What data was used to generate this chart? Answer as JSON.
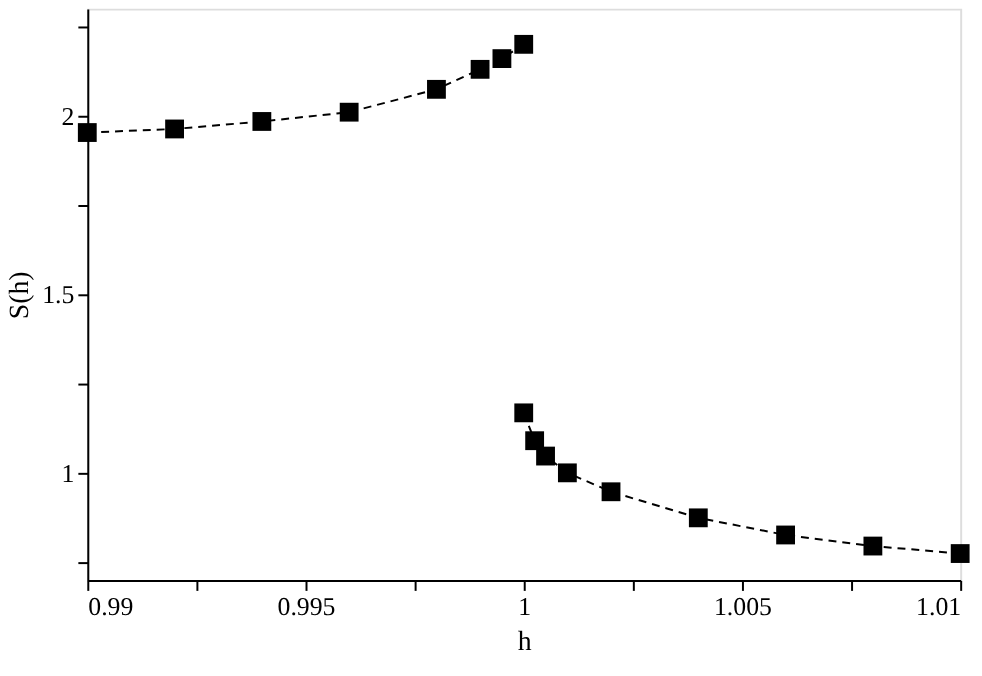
{
  "chart_data": {
    "type": "line",
    "xlabel": "h",
    "ylabel": "S(h)",
    "xlim": [
      0.99,
      1.01
    ],
    "ylim": [
      0.7,
      2.3
    ],
    "xticks": [
      0.99,
      {
        "value": 0.9925,
        "label": null
      },
      0.995,
      {
        "value": 0.9975,
        "label": null
      },
      1,
      {
        "value": 1.0025,
        "label": null
      },
      1.005,
      {
        "value": 1.0075,
        "label": null
      },
      1.01
    ],
    "yticks": [
      {
        "value": 0.75,
        "label": null
      },
      1,
      {
        "value": 1.25,
        "label": null
      },
      1.5,
      {
        "value": 1.75,
        "label": null
      },
      2,
      {
        "value": 2.25,
        "label": null
      }
    ],
    "marker": "square",
    "line_style": "dashed",
    "grid": false,
    "series": [
      {
        "color": "#000000",
        "x": [
          0.99,
          0.992,
          0.994,
          0.996,
          0.998,
          0.999,
          0.9995,
          1.0
        ],
        "values": [
          1.953,
          1.963,
          1.984,
          2.01,
          2.074,
          2.13,
          2.16,
          2.2
        ]
      },
      {
        "color": "#000000",
        "x": [
          1.0,
          1.00025,
          1.0005,
          1.001,
          1.002,
          1.004,
          1.006,
          1.008,
          1.01
        ],
        "values": [
          1.168,
          1.09,
          1.047,
          1.0,
          0.947,
          0.874,
          0.826,
          0.795,
          0.774
        ]
      }
    ]
  }
}
